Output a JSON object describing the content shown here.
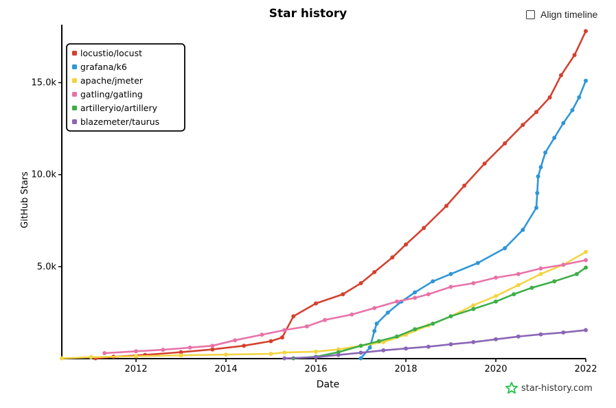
{
  "header": {
    "title": "Star history",
    "align_label": "Align timeline"
  },
  "brand": {
    "label": "star-history.com",
    "icon": "star-icon",
    "color": "#20c34a"
  },
  "chart_data": {
    "type": "line",
    "xlabel": "Date",
    "ylabel": "GitHub Stars",
    "xlim": [
      2010.35,
      2022.0
    ],
    "ylim": [
      0,
      18000
    ],
    "x_ticks": [
      2012,
      2014,
      2016,
      2018,
      2020,
      2022
    ],
    "x_tick_labels": [
      "2012",
      "2014",
      "2016",
      "2018",
      "2020",
      "2022"
    ],
    "y_ticks": [
      5000,
      10000,
      15000
    ],
    "y_tick_labels": [
      "5.0k",
      "10.0k",
      "15.0k"
    ],
    "grid": false,
    "legend_position": "top-left",
    "series": [
      {
        "name": "locustio/locust",
        "color": "#d4412f",
        "points": [
          [
            2011.1,
            20
          ],
          [
            2011.5,
            100
          ],
          [
            2012.2,
            200
          ],
          [
            2013.0,
            350
          ],
          [
            2013.7,
            500
          ],
          [
            2014.4,
            700
          ],
          [
            2015.0,
            950
          ],
          [
            2015.25,
            1150
          ],
          [
            2015.5,
            2300
          ],
          [
            2016.0,
            3000
          ],
          [
            2016.6,
            3500
          ],
          [
            2017.0,
            4100
          ],
          [
            2017.3,
            4700
          ],
          [
            2017.7,
            5500
          ],
          [
            2018.0,
            6200
          ],
          [
            2018.4,
            7100
          ],
          [
            2018.9,
            8300
          ],
          [
            2019.3,
            9400
          ],
          [
            2019.75,
            10600
          ],
          [
            2020.2,
            11700
          ],
          [
            2020.6,
            12700
          ],
          [
            2020.9,
            13400
          ],
          [
            2021.2,
            14200
          ],
          [
            2021.45,
            15400
          ],
          [
            2021.75,
            16500
          ],
          [
            2022.0,
            17800
          ]
        ]
      },
      {
        "name": "grafana/k6",
        "color": "#2f96d8",
        "points": [
          [
            2017.0,
            20
          ],
          [
            2017.2,
            600
          ],
          [
            2017.3,
            1500
          ],
          [
            2017.35,
            1900
          ],
          [
            2017.6,
            2500
          ],
          [
            2017.9,
            3100
          ],
          [
            2018.2,
            3600
          ],
          [
            2018.6,
            4200
          ],
          [
            2019.0,
            4600
          ],
          [
            2019.6,
            5200
          ],
          [
            2020.2,
            6000
          ],
          [
            2020.6,
            7000
          ],
          [
            2020.9,
            8200
          ],
          [
            2020.92,
            9000
          ],
          [
            2020.94,
            9900
          ],
          [
            2021.0,
            10400
          ],
          [
            2021.1,
            11200
          ],
          [
            2021.3,
            12000
          ],
          [
            2021.5,
            12800
          ],
          [
            2021.7,
            13500
          ],
          [
            2021.85,
            14200
          ],
          [
            2022.0,
            15100
          ]
        ]
      },
      {
        "name": "apache/jmeter",
        "color": "#f3d444",
        "points": [
          [
            2010.35,
            20
          ],
          [
            2011.0,
            80
          ],
          [
            2012.0,
            130
          ],
          [
            2013.0,
            180
          ],
          [
            2014.0,
            220
          ],
          [
            2015.0,
            260
          ],
          [
            2015.3,
            330
          ],
          [
            2016.0,
            380
          ],
          [
            2016.5,
            500
          ],
          [
            2017.0,
            700
          ],
          [
            2017.5,
            900
          ],
          [
            2018.0,
            1300
          ],
          [
            2018.5,
            1800
          ],
          [
            2019.0,
            2300
          ],
          [
            2019.5,
            2900
          ],
          [
            2020.0,
            3400
          ],
          [
            2020.5,
            4000
          ],
          [
            2021.0,
            4600
          ],
          [
            2021.5,
            5100
          ],
          [
            2022.0,
            5800
          ]
        ]
      },
      {
        "name": "gatling/gatling",
        "color": "#e872a8",
        "points": [
          [
            2011.3,
            300
          ],
          [
            2012.0,
            400
          ],
          [
            2012.6,
            480
          ],
          [
            2013.2,
            600
          ],
          [
            2013.7,
            700
          ],
          [
            2014.2,
            1000
          ],
          [
            2014.8,
            1300
          ],
          [
            2015.3,
            1550
          ],
          [
            2015.8,
            1750
          ],
          [
            2016.2,
            2100
          ],
          [
            2016.8,
            2400
          ],
          [
            2017.3,
            2750
          ],
          [
            2017.8,
            3100
          ],
          [
            2018.2,
            3300
          ],
          [
            2018.5,
            3500
          ],
          [
            2019.0,
            3900
          ],
          [
            2019.5,
            4100
          ],
          [
            2020.0,
            4400
          ],
          [
            2020.5,
            4600
          ],
          [
            2021.0,
            4900
          ],
          [
            2021.5,
            5100
          ],
          [
            2022.0,
            5350
          ]
        ]
      },
      {
        "name": "artilleryio/artillery",
        "color": "#3cae47",
        "points": [
          [
            2015.5,
            20
          ],
          [
            2016.0,
            100
          ],
          [
            2016.5,
            350
          ],
          [
            2017.0,
            700
          ],
          [
            2017.4,
            950
          ],
          [
            2017.8,
            1200
          ],
          [
            2018.2,
            1600
          ],
          [
            2018.6,
            1900
          ],
          [
            2019.0,
            2300
          ],
          [
            2019.5,
            2700
          ],
          [
            2020.0,
            3100
          ],
          [
            2020.4,
            3500
          ],
          [
            2020.8,
            3850
          ],
          [
            2021.3,
            4200
          ],
          [
            2021.8,
            4600
          ],
          [
            2022.0,
            4950
          ]
        ]
      },
      {
        "name": "blazemeter/taurus",
        "color": "#8966b6",
        "points": [
          [
            2015.3,
            20
          ],
          [
            2016.0,
            80
          ],
          [
            2016.5,
            200
          ],
          [
            2017.0,
            320
          ],
          [
            2017.5,
            450
          ],
          [
            2018.0,
            550
          ],
          [
            2018.5,
            650
          ],
          [
            2019.0,
            780
          ],
          [
            2019.5,
            900
          ],
          [
            2020.0,
            1050
          ],
          [
            2020.5,
            1200
          ],
          [
            2021.0,
            1320
          ],
          [
            2021.5,
            1420
          ],
          [
            2022.0,
            1550
          ]
        ]
      }
    ]
  }
}
